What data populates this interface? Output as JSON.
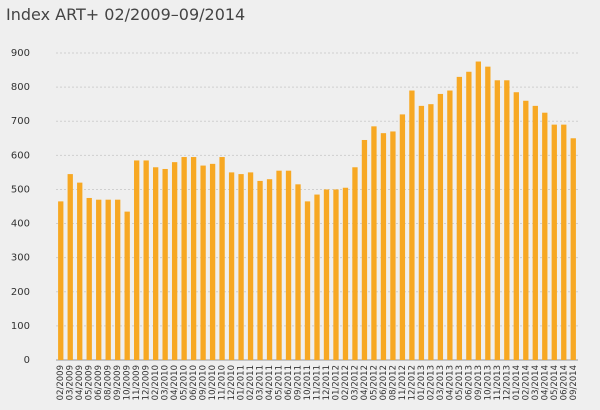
{
  "chart_data": {
    "type": "bar",
    "title": "Index ART+ 02/2009–09/2014",
    "categories": [
      "02/2009",
      "03/2009",
      "04/2009",
      "05/2009",
      "06/2009",
      "08/2009",
      "09/2009",
      "10/2009",
      "11/2009",
      "12/2009",
      "02/2010",
      "03/2010",
      "04/2010",
      "05/2010",
      "06/2010",
      "09/2010",
      "10/2010",
      "11/2010",
      "12/2010",
      "01/2011",
      "02/2011",
      "03/2011",
      "04/2011",
      "05/2011",
      "06/2011",
      "09/2011",
      "10/2011",
      "11/2011",
      "12/2011",
      "01/2012",
      "02/2012",
      "03/2012",
      "04/2012",
      "05/2012",
      "06/2012",
      "08/2012",
      "11/2012",
      "12/2012",
      "01/2013",
      "02/2013",
      "03/2013",
      "04/2013",
      "05/2013",
      "06/2013",
      "09/2013",
      "10/2013",
      "11/2013",
      "12/2013",
      "01/2014",
      "02/2014",
      "03/2014",
      "04/2014",
      "05/2014",
      "06/2014",
      "09/2014"
    ],
    "values": [
      465,
      545,
      520,
      475,
      470,
      470,
      470,
      435,
      585,
      585,
      565,
      560,
      580,
      595,
      595,
      570,
      575,
      595,
      550,
      545,
      550,
      525,
      530,
      555,
      555,
      515,
      465,
      485,
      500,
      500,
      505,
      565,
      645,
      685,
      665,
      670,
      720,
      790,
      745,
      750,
      780,
      790,
      830,
      845,
      875,
      860,
      820,
      820,
      785,
      760,
      745,
      725,
      690,
      690,
      650
    ],
    "color": "#f7a823",
    "ylim": [
      0,
      900
    ],
    "yticks": [
      0,
      100,
      200,
      300,
      400,
      500,
      600,
      700,
      800,
      900
    ],
    "grid": true
  }
}
